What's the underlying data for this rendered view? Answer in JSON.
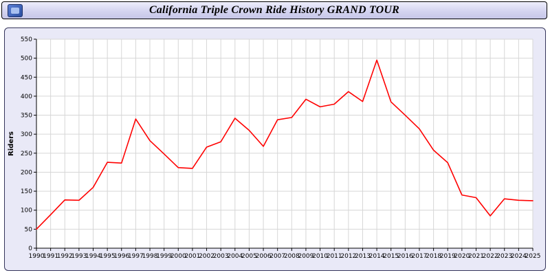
{
  "title": "California Triple Crown Ride History GRAND TOUR",
  "chart_data": {
    "type": "line",
    "title": "California Triple Crown Ride History GRAND TOUR",
    "ylabel": "Riders",
    "xlabel": "",
    "ylim": [
      0,
      550
    ],
    "ytick_step": 50,
    "grid": true,
    "legend_position": "none",
    "line_color": "#ff0000",
    "plot_bg": "#ffffff",
    "grid_color": "#d6d6d6",
    "x": [
      1990,
      1991,
      1992,
      1993,
      1994,
      1995,
      1996,
      1997,
      1998,
      1999,
      2000,
      2001,
      2002,
      2003,
      2004,
      2005,
      2006,
      2007,
      2008,
      2009,
      2010,
      2011,
      2012,
      2013,
      2014,
      2015,
      2016,
      2017,
      2018,
      2019,
      2020,
      2021,
      2022,
      2023,
      2024,
      2025
    ],
    "series": [
      {
        "name": "Riders",
        "values": [
          50,
          88,
          127,
          126,
          160,
          226,
          224,
          340,
          283,
          248,
          212,
          210,
          266,
          280,
          342,
          310,
          268,
          338,
          344,
          392,
          372,
          379,
          412,
          386,
          495,
          385,
          350,
          314,
          258,
          225,
          140,
          133,
          85,
          130,
          126,
          125
        ]
      }
    ]
  }
}
